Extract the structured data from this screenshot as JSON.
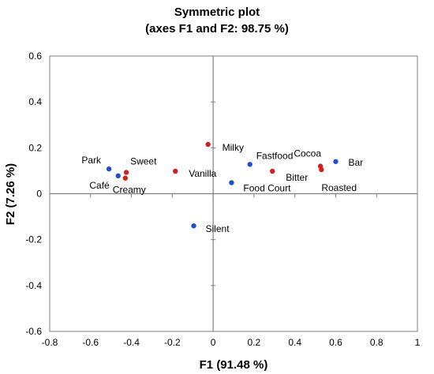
{
  "chart_data": {
    "type": "scatter",
    "title": "Symmetric plot",
    "subtitle": "(axes F1 and  F2: 98.75 %)",
    "xlabel": "F1 (91.48 %)",
    "ylabel": "F2 (7.26 %)",
    "xlim": [
      -0.8,
      1
    ],
    "ylim": [
      -0.6,
      0.6
    ],
    "x_ticks": [
      -0.8,
      -0.6,
      -0.4,
      -0.2,
      0,
      0.2,
      0.4,
      0.6,
      0.8,
      1
    ],
    "y_ticks": [
      -0.6,
      -0.4,
      -0.2,
      0,
      0.2,
      0.4,
      0.6
    ],
    "x_tick_labels": [
      "-0.8",
      "-0.6",
      "-0.4",
      "-0.2",
      "0",
      "0.2",
      "0.4",
      "0.6",
      "0.8",
      "1"
    ],
    "y_tick_labels": [
      "-0.6",
      "-0.4",
      "-0.2",
      "0",
      "0.2",
      "0.4",
      "0.6"
    ],
    "grid": false,
    "colors": {
      "blue": "#1f4fd1",
      "red": "#d41f1f",
      "axis": "#7f7f7f",
      "frame": "#7f7f7f"
    },
    "series": [
      {
        "color": "blue",
        "points": [
          {
            "label": "Park",
            "x": -0.51,
            "y": 0.108
          },
          {
            "label": "Café",
            "x": -0.465,
            "y": 0.078
          },
          {
            "label": "Fastfood",
            "x": 0.18,
            "y": 0.128
          },
          {
            "label": "Food Court",
            "x": 0.09,
            "y": 0.048
          },
          {
            "label": "Bar",
            "x": 0.6,
            "y": 0.14
          },
          {
            "label": "Silent",
            "x": -0.095,
            "y": -0.14
          }
        ]
      },
      {
        "color": "red",
        "points": [
          {
            "label": "Sweet",
            "x": -0.425,
            "y": 0.093
          },
          {
            "label": "Creamy",
            "x": -0.43,
            "y": 0.068
          },
          {
            "label": "Vanilla",
            "x": -0.185,
            "y": 0.098
          },
          {
            "label": "Milky",
            "x": -0.025,
            "y": 0.215
          },
          {
            "label": "Bitter",
            "x": 0.29,
            "y": 0.098
          },
          {
            "label": "Cocoa",
            "x": 0.525,
            "y": 0.12
          },
          {
            "label": "Roasted",
            "x": 0.53,
            "y": 0.105
          }
        ]
      }
    ]
  }
}
